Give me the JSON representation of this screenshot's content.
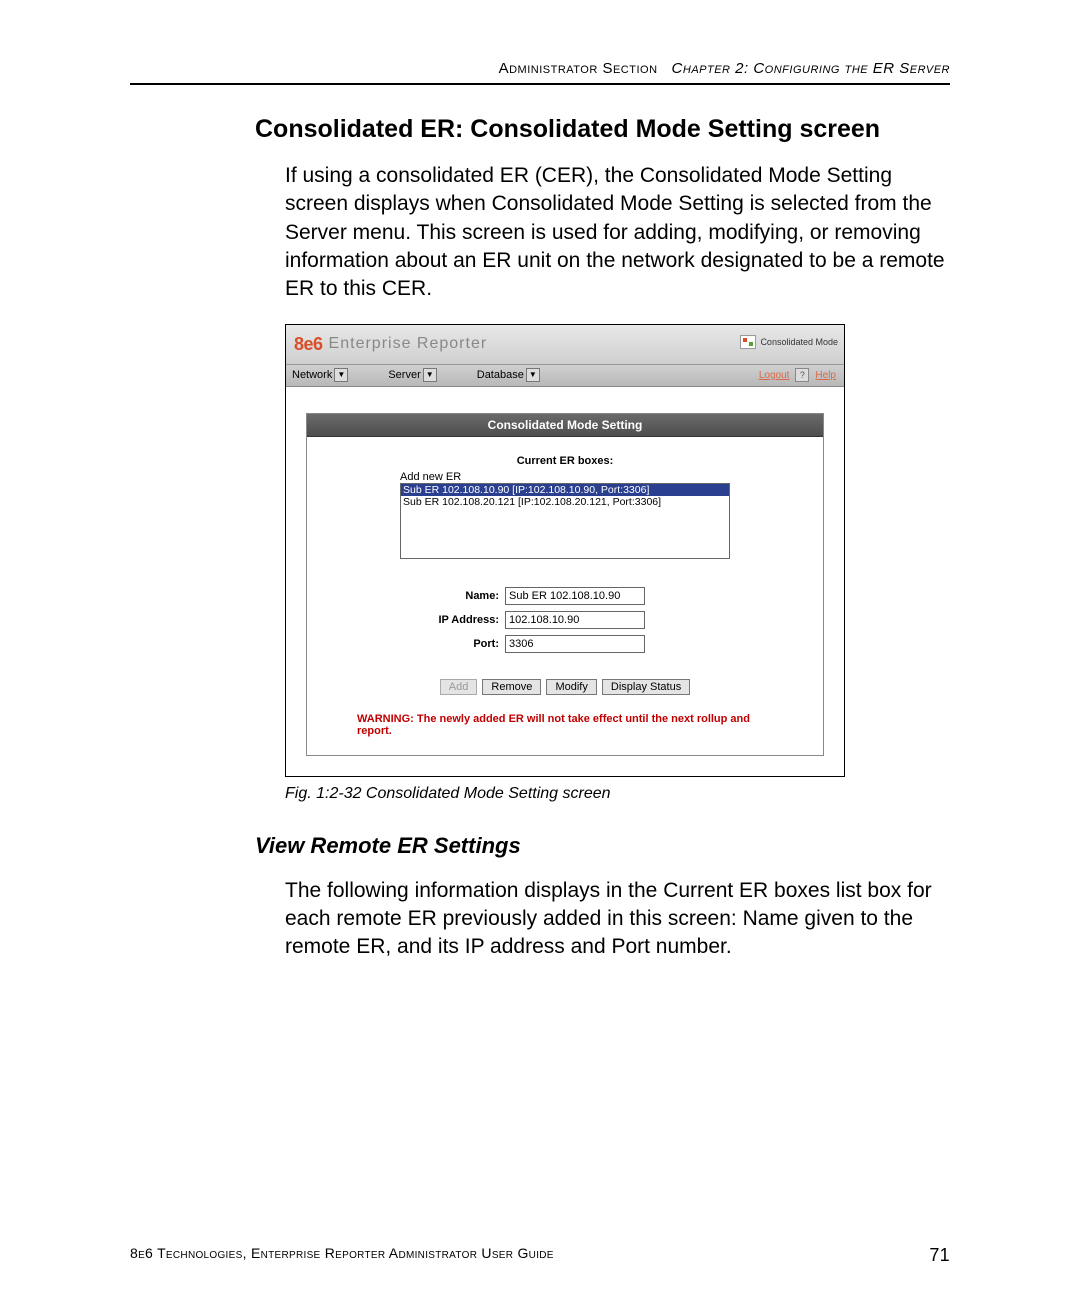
{
  "header": {
    "section": "Administrator Section",
    "chapter": "Chapter 2: Configuring the ER Server"
  },
  "title": "Consolidated ER: Consolidated Mode Setting screen",
  "intro": "If using a consolidated ER (CER), the Consolidated Mode Setting screen displays when Consolidated Mode Setting is selected from the Server menu. This screen is used for adding, modifying, or removing information about an ER unit on the network designated to be a remote ER to this CER.",
  "screenshot": {
    "brand": "8e6",
    "brand_sub": "Enterprise Reporter",
    "mode_label": "Consolidated Mode",
    "menus": {
      "network": "Network",
      "server": "Server",
      "database": "Database"
    },
    "links": {
      "logout": "Logout",
      "help": "Help"
    },
    "panel_title": "Consolidated Mode Setting",
    "subhead": "Current ER boxes:",
    "listbox_label": "Add new ER",
    "list_items": [
      "Sub ER 102.108.10.90 [IP:102.108.10.90, Port:3306]",
      "Sub ER 102.108.20.121 [IP:102.108.20.121, Port:3306]"
    ],
    "selected_index": 0,
    "fields": {
      "name_label": "Name:",
      "name_value": "Sub ER 102.108.10.90",
      "ip_label": "IP Address:",
      "ip_value": "102.108.10.90",
      "port_label": "Port:",
      "port_value": "3306"
    },
    "buttons": {
      "add": "Add",
      "remove": "Remove",
      "modify": "Modify",
      "display_status": "Display Status"
    },
    "warning": "WARNING: The newly added ER will not take effect until the next rollup and report."
  },
  "caption": "Fig. 1:2-32  Consolidated Mode Setting screen",
  "section2_title": "View Remote ER Settings",
  "section2_body": "The following information displays in the Current ER boxes list box for each remote ER previously added in this screen: Name given to the remote ER, and its IP address and Port number.",
  "footer": {
    "text": "8e6 Technologies, Enterprise Reporter Administrator User Guide",
    "page": "71"
  },
  "colors": {
    "accent_orange": "#d94f2a",
    "selection_blue": "#2a3f8f",
    "warning_red": "#c00000",
    "titlebar_dark": "#4e4e4e"
  }
}
